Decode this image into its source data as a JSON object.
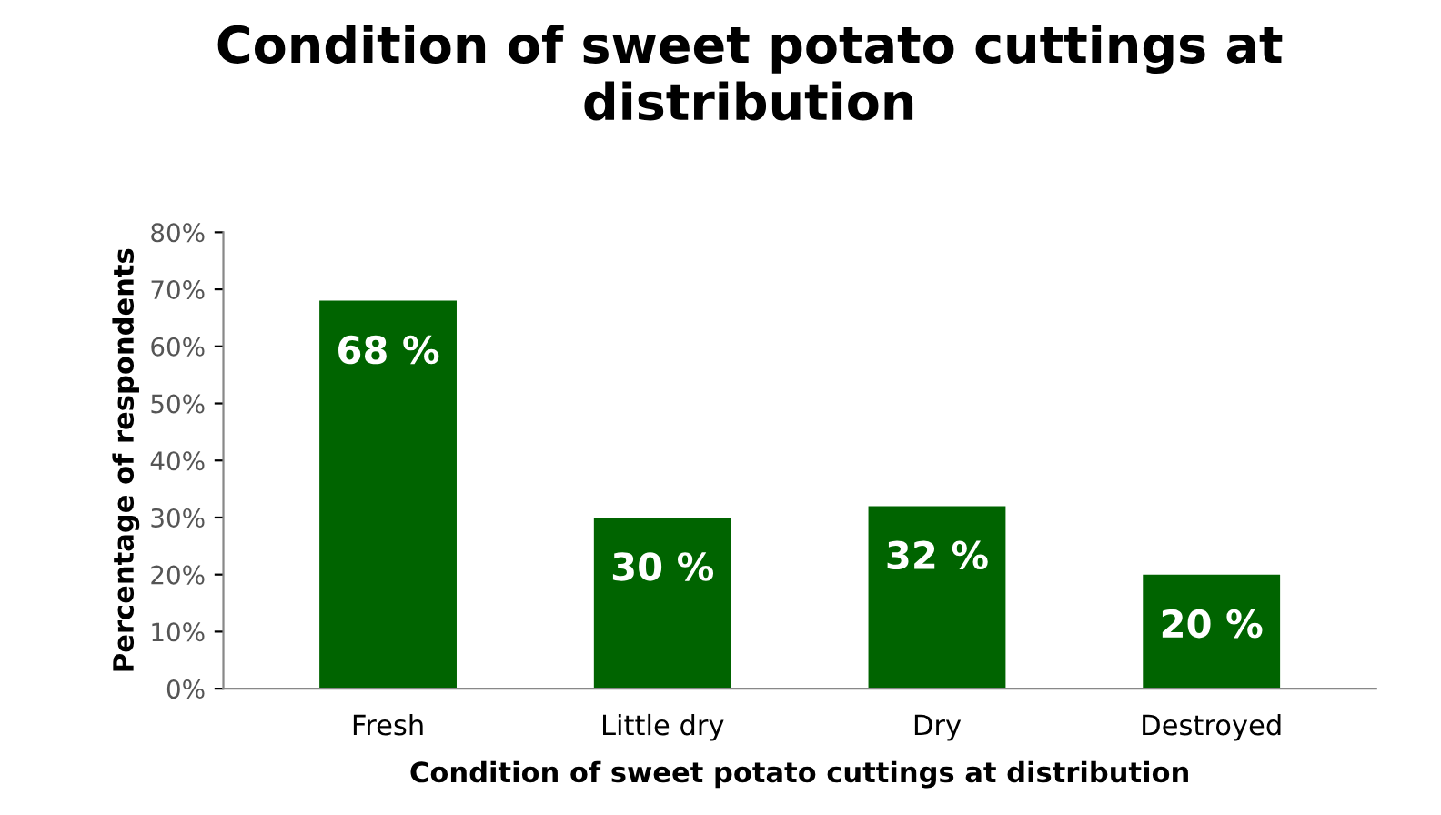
{
  "chart_data": {
    "type": "bar",
    "title": "Condition of sweet potato cuttings at distribution",
    "xlabel": "Condition of sweet potato cuttings at distribution",
    "ylabel": "Percentage of respondents",
    "categories": [
      "Fresh",
      "Little dry",
      "Dry",
      "Destroyed"
    ],
    "values": [
      68,
      30,
      32,
      20
    ],
    "color": "#006400",
    "value_labels": [
      "68 %",
      "30 %",
      "32 %",
      "20 %"
    ],
    "ylim": [
      0,
      80
    ],
    "yticks": [
      {
        "value": 0,
        "label": "0%"
      },
      {
        "value": 10,
        "label": "10%"
      },
      {
        "value": 20,
        "label": "20%"
      },
      {
        "value": 30,
        "label": "30%"
      },
      {
        "value": 40,
        "label": "40%"
      },
      {
        "value": 50,
        "label": "50%"
      },
      {
        "value": 60,
        "label": "60%"
      },
      {
        "value": 70,
        "label": "70%"
      },
      {
        "value": 80,
        "label": "80%"
      }
    ],
    "grid": false,
    "legend": false
  }
}
